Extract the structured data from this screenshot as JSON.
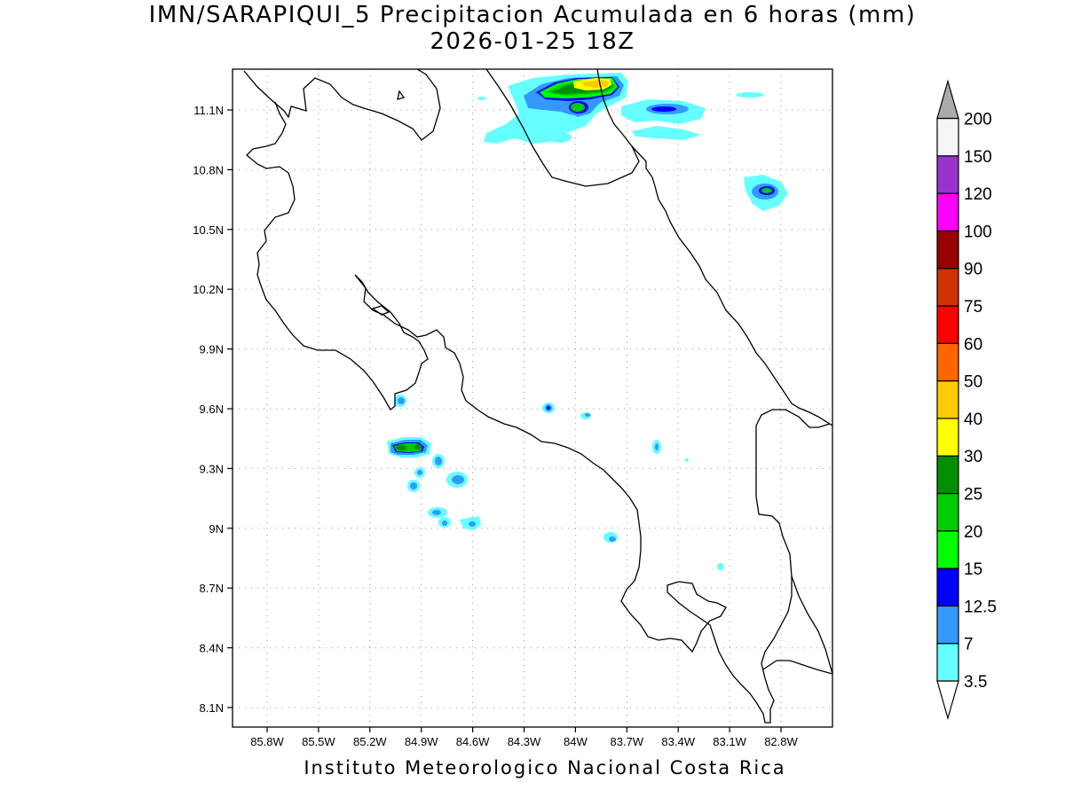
{
  "title": {
    "line1": "IMN/SARAPIQUI_5 Precipitacion Acumulada en 6 horas (mm)",
    "line2": "2026-01-25 18Z"
  },
  "footer": "Instituto Meteorologico Nacional Costa Rica",
  "axes": {
    "lat_labels": [
      "11.1N",
      "10.8N",
      "10.5N",
      "10.2N",
      "9.9N",
      "9.6N",
      "9.3N",
      "9N",
      "8.7N",
      "8.4N",
      "8.1N"
    ],
    "lon_labels": [
      "85.8W",
      "85.5W",
      "85.2W",
      "84.9W",
      "84.6W",
      "84.3W",
      "84W",
      "83.7W",
      "83.4W",
      "83.1W",
      "82.8W"
    ]
  },
  "colorbar": {
    "levels": [
      {
        "label": "3.5",
        "color": "#66ffff"
      },
      {
        "label": "7",
        "color": "#3399ff"
      },
      {
        "label": "12.5",
        "color": "#0000ff"
      },
      {
        "label": "15",
        "color": "#00ff00"
      },
      {
        "label": "20",
        "color": "#00cc00"
      },
      {
        "label": "25",
        "color": "#008f00"
      },
      {
        "label": "30",
        "color": "#ffff00"
      },
      {
        "label": "40",
        "color": "#ffcc00"
      },
      {
        "label": "50",
        "color": "#ff6600"
      },
      {
        "label": "60",
        "color": "#ff0000"
      },
      {
        "label": "75",
        "color": "#cc3300"
      },
      {
        "label": "90",
        "color": "#990000"
      },
      {
        "label": "100",
        "color": "#ff00ff"
      },
      {
        "label": "120",
        "color": "#9933cc"
      },
      {
        "label": "150",
        "color": "#f5f5f5"
      },
      {
        "label": "200",
        "color": "#aaaaaa"
      }
    ]
  }
}
